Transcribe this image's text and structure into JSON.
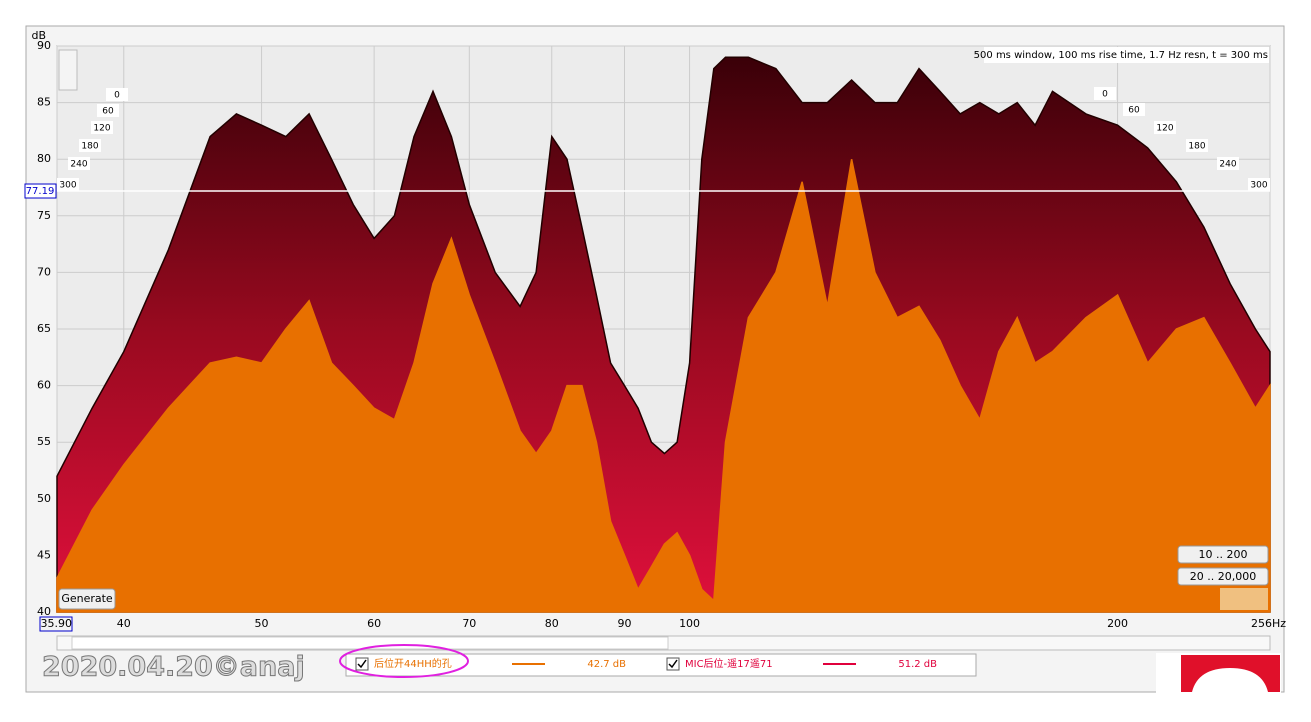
{
  "chart_data": {
    "type": "waterfall",
    "y_label": "dB",
    "info": "500 ms window, 100 ms rise time,  1.7 Hz resn, t = 300 ms",
    "x": [
      35.9,
      38,
      40,
      43,
      46,
      48,
      50,
      52,
      54,
      56,
      58,
      60,
      62,
      64,
      66,
      68,
      70,
      73,
      76,
      78,
      80,
      82,
      84,
      86,
      88,
      90,
      92,
      94,
      96,
      98,
      100,
      102,
      104,
      106,
      110,
      115,
      120,
      125,
      130,
      135,
      140,
      145,
      150,
      155,
      160,
      165,
      170,
      175,
      180,
      190,
      200,
      210,
      220,
      230,
      240,
      250,
      256
    ],
    "series": [
      {
        "name": "后位开44HH的孔",
        "color": "#e87000",
        "level": 42.7,
        "level_label": "42.7 dB",
        "values": [
          43,
          49,
          53,
          58,
          62,
          62.5,
          62,
          65,
          67.5,
          62,
          60,
          58,
          57,
          62,
          69,
          73,
          68,
          62,
          56,
          54,
          56,
          60,
          60,
          55,
          48,
          45,
          42,
          44,
          46,
          47,
          45,
          42,
          41,
          55,
          66,
          70,
          78,
          67,
          80,
          70,
          66,
          67,
          64,
          60,
          57,
          63,
          66,
          62,
          63,
          66,
          68,
          62,
          65,
          66,
          62,
          58,
          60
        ]
      },
      {
        "name": "MIC后位-遥17遥71",
        "color": "#e0003c",
        "level": 51.2,
        "level_label": "51.2 dB",
        "values": [
          52,
          58,
          63,
          72,
          82,
          84,
          83,
          82,
          84,
          80,
          76,
          73,
          75,
          82,
          86,
          82,
          76,
          70,
          67,
          70,
          82,
          80,
          74,
          68,
          62,
          60,
          58,
          55,
          54,
          55,
          62,
          80,
          88,
          89,
          89,
          88,
          85,
          85,
          87,
          85,
          85,
          88,
          86,
          84,
          85,
          84,
          85,
          83,
          86,
          84,
          83,
          81,
          78,
          74,
          69,
          65,
          63
        ]
      }
    ],
    "log_x": true,
    "xlim": [
      35.9,
      256
    ],
    "xticks": [
      {
        "value": 35.9,
        "label": "35.90"
      },
      40,
      50,
      60,
      70,
      80,
      90,
      100,
      200,
      {
        "value": 256,
        "label": "256Hz"
      }
    ],
    "ylim": [
      40,
      90
    ],
    "yticks": [
      40,
      45,
      50,
      55,
      60,
      65,
      70,
      75,
      80,
      85,
      90
    ],
    "y_cursor": 77.19,
    "time_ticks": [
      0,
      60,
      120,
      180,
      240,
      300
    ],
    "grid": true
  },
  "ui": {
    "generate": "Generate",
    "range_1": "10 .. 200",
    "range_2": "20 .. 20,000",
    "watermark": "2020.04.20©anaj"
  }
}
